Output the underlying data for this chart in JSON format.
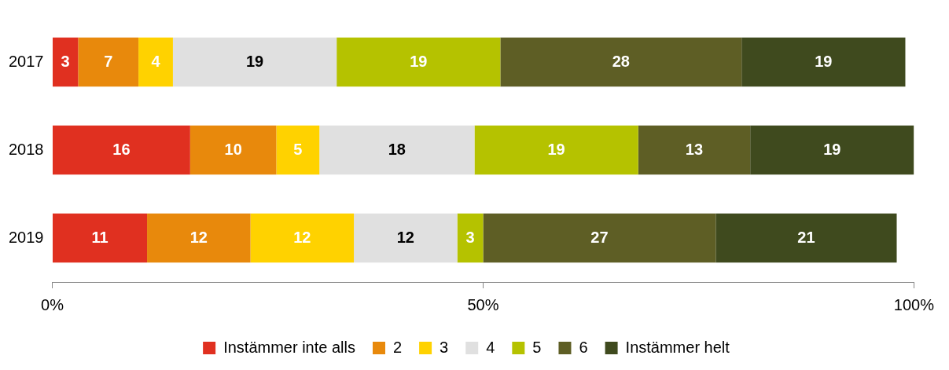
{
  "chart_data": {
    "type": "bar",
    "orientation": "horizontal",
    "stacked": true,
    "categories": [
      "2017",
      "2018",
      "2019"
    ],
    "series": [
      {
        "name": "Instämmer inte alls",
        "color": "#e03020",
        "values": [
          3,
          16,
          11
        ]
      },
      {
        "name": "2",
        "color": "#e8890c",
        "values": [
          7,
          10,
          12
        ]
      },
      {
        "name": "3",
        "color": "#ffd200",
        "values": [
          4,
          5,
          12
        ]
      },
      {
        "name": "4",
        "color": "#e0e0e0",
        "values": [
          19,
          18,
          12
        ]
      },
      {
        "name": "5",
        "color": "#b5c200",
        "values": [
          19,
          19,
          3
        ]
      },
      {
        "name": "6",
        "color": "#5e5e25",
        "values": [
          28,
          13,
          27
        ]
      },
      {
        "name": "Instämmer helt",
        "color": "#3f4a1e",
        "values": [
          19,
          19,
          21
        ]
      }
    ],
    "xlim": [
      0,
      100
    ],
    "xticks": [
      {
        "value": 0,
        "label": "0%"
      },
      {
        "value": 50,
        "label": "50%"
      },
      {
        "value": 100,
        "label": "100%"
      }
    ],
    "grid": false,
    "legend": "bottom",
    "data_labels": true
  }
}
